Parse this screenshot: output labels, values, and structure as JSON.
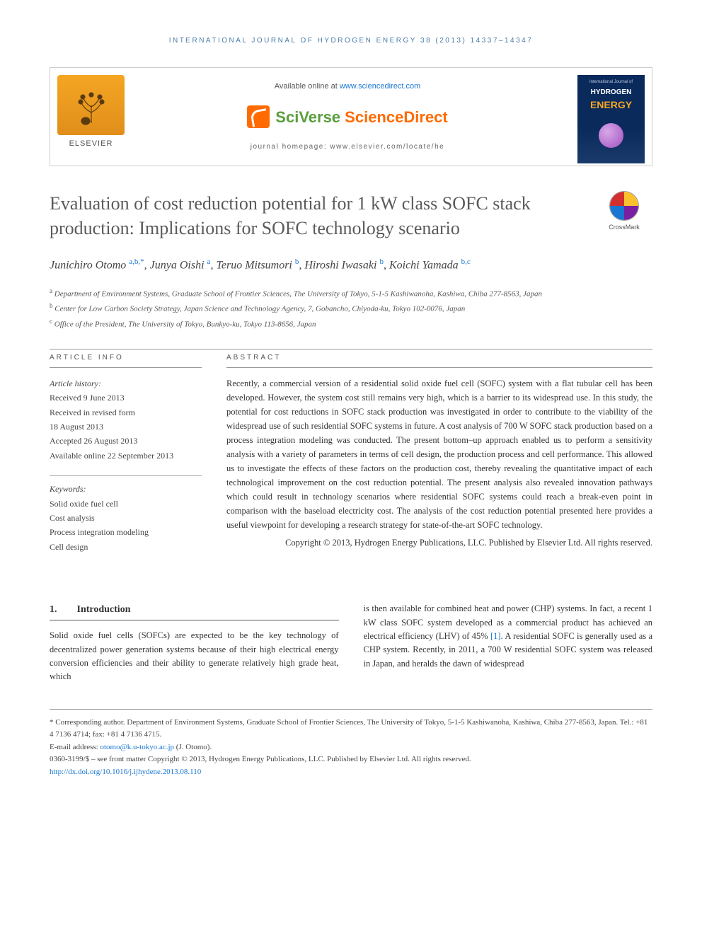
{
  "running_head": "INTERNATIONAL JOURNAL OF HYDROGEN ENERGY 38 (2013) 14337–14347",
  "header": {
    "available_text_pre": "Available online at ",
    "available_link": "www.sciencedirect.com",
    "sciverse_pre": "SciVerse ",
    "sciverse_post": "ScienceDirect",
    "homepage_label": "journal homepage: www.elsevier.com/locate/he",
    "elsevier_label": "ELSEVIER",
    "cover_top": "International Journal of",
    "cover_hydrogen": "HYDROGEN",
    "cover_energy": "ENERGY"
  },
  "crossmark_label": "CrossMark",
  "title": "Evaluation of cost reduction potential for 1 kW class SOFC stack production: Implications for SOFC technology scenario",
  "authors_html": "Junichiro Otomo <span class='aff'>a,b,*</span>, Junya Oishi <span class='aff'>a</span>, Teruo Mitsumori <span class='aff'>b</span>, Hiroshi Iwasaki <span class='aff'>b</span>, Koichi Yamada <span class='aff'>b,c</span>",
  "affiliations": [
    {
      "sup": "a",
      "text": "Department of Environment Systems, Graduate School of Frontier Sciences, The University of Tokyo, 5-1-5 Kashiwanoha, Kashiwa, Chiba 277-8563, Japan"
    },
    {
      "sup": "b",
      "text": "Center for Low Carbon Society Strategy, Japan Science and Technology Agency, 7, Gobancho, Chiyoda-ku, Tokyo 102-0076, Japan"
    },
    {
      "sup": "c",
      "text": "Office of the President, The University of Tokyo, Bunkyo-ku, Tokyo 113-8656, Japan"
    }
  ],
  "article_info": {
    "head": "ARTICLE INFO",
    "history_label": "Article history:",
    "history": [
      "Received 9 June 2013",
      "Received in revised form",
      "18 August 2013",
      "Accepted 26 August 2013",
      "Available online 22 September 2013"
    ],
    "keywords_label": "Keywords:",
    "keywords": [
      "Solid oxide fuel cell",
      "Cost analysis",
      "Process integration modeling",
      "Cell design"
    ]
  },
  "abstract": {
    "head": "ABSTRACT",
    "text": "Recently, a commercial version of a residential solid oxide fuel cell (SOFC) system with a flat tubular cell has been developed. However, the system cost still remains very high, which is a barrier to its widespread use. In this study, the potential for cost reductions in SOFC stack production was investigated in order to contribute to the viability of the widespread use of such residential SOFC systems in future. A cost analysis of 700 W SOFC stack production based on a process integration modeling was conducted. The present bottom–up approach enabled us to perform a sensitivity analysis with a variety of parameters in terms of cell design, the production process and cell performance. This allowed us to investigate the effects of these factors on the production cost, thereby revealing the quantitative impact of each technological improvement on the cost reduction potential. The present analysis also revealed innovation pathways which could result in technology scenarios where residential SOFC systems could reach a break-even point in comparison with the baseload electricity cost. The analysis of the cost reduction potential presented here provides a useful viewpoint for developing a research strategy for state-of-the-art SOFC technology.",
    "copyright": "Copyright © 2013, Hydrogen Energy Publications, LLC. Published by Elsevier Ltd. All rights reserved."
  },
  "section": {
    "num": "1.",
    "title": "Introduction",
    "col1": "Solid oxide fuel cells (SOFCs) are expected to be the key technology of decentralized power generation systems because of their high electrical energy conversion efficiencies and their ability to generate relatively high grade heat, which",
    "col2_pre": "is then available for combined heat and power (CHP) systems. In fact, a recent 1 kW class SOFC system developed as a commercial product has achieved an electrical efficiency (LHV) of 45% ",
    "col2_ref": "[1]",
    "col2_post": ". A residential SOFC is generally used as a CHP system. Recently, in 2011, a 700 W residential SOFC system was released in Japan, and heralds the dawn of widespread"
  },
  "footer": {
    "corresponding": "* Corresponding author. Department of Environment Systems, Graduate School of Frontier Sciences, The University of Tokyo, 5-1-5 Kashiwanoha, Kashiwa, Chiba 277-8563, Japan. Tel.: +81 4 7136 4714; fax: +81 4 7136 4715.",
    "email_label": "E-mail address: ",
    "email": "otomo@k.u-tokyo.ac.jp",
    "email_post": " (J. Otomo).",
    "issn": "0360-3199/$ – see front matter Copyright © 2013, Hydrogen Energy Publications, LLC. Published by Elsevier Ltd. All rights reserved.",
    "doi": "http://dx.doi.org/10.1016/j.ijhydene.2013.08.110"
  },
  "colors": {
    "link": "#1976d2",
    "heading": "#5a5a5a",
    "orange": "#ff6b00",
    "green": "#5a9e3c"
  }
}
